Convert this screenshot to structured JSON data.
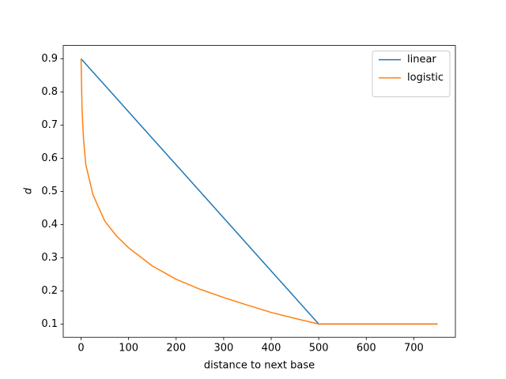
{
  "chart_data": {
    "type": "line",
    "xlabel": "distance to next base",
    "ylabel": "d",
    "x": [
      0,
      2,
      5,
      10,
      25,
      50,
      75,
      100,
      150,
      200,
      250,
      300,
      350,
      400,
      450,
      500,
      750
    ],
    "series": [
      {
        "name": "linear",
        "color": "#1f77b4",
        "values": [
          0.9,
          0.8968,
          0.892,
          0.884,
          0.86,
          0.82,
          0.78,
          0.74,
          0.66,
          0.58,
          0.5,
          0.42,
          0.34,
          0.26,
          0.18,
          0.1,
          0.1
        ]
      },
      {
        "name": "logistic",
        "color": "#ff7f0e",
        "values": [
          0.9,
          0.75,
          0.66,
          0.58,
          0.49,
          0.41,
          0.365,
          0.33,
          0.275,
          0.235,
          0.205,
          0.18,
          0.157,
          0.135,
          0.117,
          0.1,
          0.1
        ]
      }
    ],
    "xlim": [
      -37.5,
      787.5
    ],
    "ylim": [
      0.06,
      0.94
    ],
    "xticks": [
      0,
      100,
      200,
      300,
      400,
      500,
      600,
      700
    ],
    "yticks": [
      0.1,
      0.2,
      0.3,
      0.4,
      0.5,
      0.6,
      0.7,
      0.8,
      0.9
    ],
    "legend": "upper right"
  }
}
